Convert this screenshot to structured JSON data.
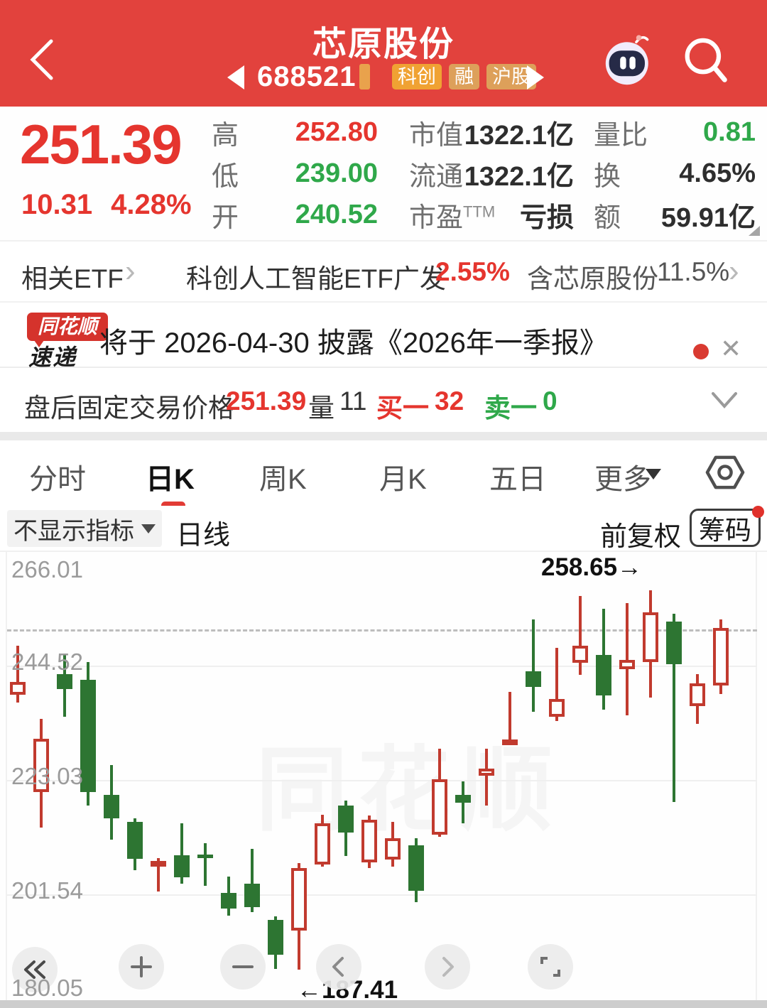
{
  "colors": {
    "header_red": "#e2423d",
    "text_red": "#e5352e",
    "text_green": "#2fa84a",
    "text_dark": "#2e2e2e"
  },
  "header": {
    "title": "芯原股份",
    "code": "688521",
    "badges": [
      "科创",
      "融",
      "沪股"
    ]
  },
  "quote": {
    "price": "251.39",
    "change": "10.31",
    "change_pct": "4.28%",
    "col1": [
      {
        "label": "高",
        "value": "252.80",
        "color": "red"
      },
      {
        "label": "低",
        "value": "239.00",
        "color": "green"
      },
      {
        "label": "开",
        "value": "240.52",
        "color": "green"
      }
    ],
    "col2": [
      {
        "label": "市值",
        "value": "1322.1亿",
        "color": "dark"
      },
      {
        "label": "流通",
        "value": "1322.1亿",
        "color": "dark"
      },
      {
        "label": "市盈",
        "sup": "TTM",
        "value": "亏损",
        "color": "dark"
      }
    ],
    "col3": [
      {
        "label": "量比",
        "value": "0.81",
        "color": "green"
      },
      {
        "label": "换",
        "value": "4.65%",
        "color": "dark"
      },
      {
        "label": "额",
        "value": "59.91亿",
        "color": "dark"
      }
    ]
  },
  "etf_row": {
    "label": "相关ETF",
    "chevron": "›",
    "name": "科创人工智能ETF广发",
    "pct": "2.55%",
    "holding": "含芯原股份",
    "holding_pct": "11.5%"
  },
  "news": {
    "logo_top": "同花顺",
    "logo_bottom": "速递",
    "text": "将于 2026-04-30 披露《2026年一季报》",
    "close": "✕"
  },
  "afterhours": {
    "label": "盘后固定交易价格",
    "price": "251.39",
    "vol_label": "量",
    "vol": "11",
    "bid_label": "买一",
    "bid": "32",
    "ask_label": "卖一",
    "ask": "0"
  },
  "tabs": {
    "items": [
      "分时",
      "日K",
      "周K",
      "月K",
      "五日"
    ],
    "active": "日K",
    "more": "更多"
  },
  "controls": {
    "indicator": "不显示指标",
    "period": "日线",
    "adjust": "前复权",
    "chip": "筹码"
  },
  "chart_data": {
    "type": "candlestick",
    "title": "芯原股份 688521 日K (前复权)",
    "y_ticks": [
      266.01,
      244.52,
      223.03,
      201.54,
      180.05
    ],
    "price_line": 251.39,
    "high_value": 258.65,
    "low_value": 187.41,
    "high_marker": "258.65→",
    "low_marker": "←187.41",
    "watermark": "同花顺",
    "legend": "red hollow = up day, green solid = down day",
    "colors": {
      "up": "#c13a2e",
      "down": "#2d7532"
    },
    "candles_format": [
      "open",
      "close",
      "high",
      "low"
    ],
    "candles": [
      [
        239.1,
        241.5,
        248.2,
        237.6
      ],
      [
        220.8,
        230.8,
        234.5,
        214.1
      ],
      [
        242.9,
        240.1,
        246.8,
        234.9
      ],
      [
        241.9,
        220.8,
        245.2,
        218.2
      ],
      [
        220.2,
        215.8,
        225.8,
        211.8
      ],
      [
        215.2,
        208.2,
        215.8,
        206.1
      ],
      [
        206.7,
        207.8,
        208.4,
        202.1
      ],
      [
        208.9,
        204.7,
        214.9,
        203.5
      ],
      [
        209.0,
        208.5,
        211.1,
        203.1
      ],
      [
        201.8,
        198.9,
        204.9,
        197.5
      ],
      [
        203.5,
        199.1,
        210.1,
        198.2
      ],
      [
        196.7,
        190.2,
        197.4,
        187.5
      ],
      [
        194.7,
        206.5,
        207.4,
        187.41
      ],
      [
        207.1,
        214.9,
        216.5,
        206.7
      ],
      [
        218.2,
        213.1,
        219.2,
        208.8
      ],
      [
        207.5,
        215.6,
        216.3,
        206.5
      ],
      [
        208.1,
        212.1,
        215.2,
        206.7
      ],
      [
        210.7,
        202.2,
        212.1,
        200.1
      ],
      [
        212.7,
        223.1,
        228.9,
        212.4
      ],
      [
        220.2,
        218.7,
        222.7,
        214.9
      ],
      [
        223.8,
        225.2,
        228.9,
        218.2
      ],
      [
        230.1,
        230.6,
        239.6,
        229.9
      ],
      [
        243.5,
        240.5,
        253.2,
        235.8
      ],
      [
        234.9,
        238.2,
        247.9,
        234.1
      ],
      [
        245.0,
        248.3,
        257.6,
        242.8
      ],
      [
        246.5,
        238.9,
        255.2,
        236.2
      ],
      [
        243.9,
        245.6,
        256.3,
        235.2
      ],
      [
        245.2,
        254.5,
        258.65,
        238.5
      ],
      [
        252.8,
        244.8,
        254.3,
        218.9
      ],
      [
        236.9,
        241.2,
        242.9,
        233.6
      ],
      [
        240.8,
        251.6,
        253.2,
        239.2
      ]
    ]
  },
  "toolbar": {
    "buttons": [
      "rewind",
      "zoom-in",
      "zoom-out",
      "prev",
      "next",
      "fullscreen"
    ]
  }
}
